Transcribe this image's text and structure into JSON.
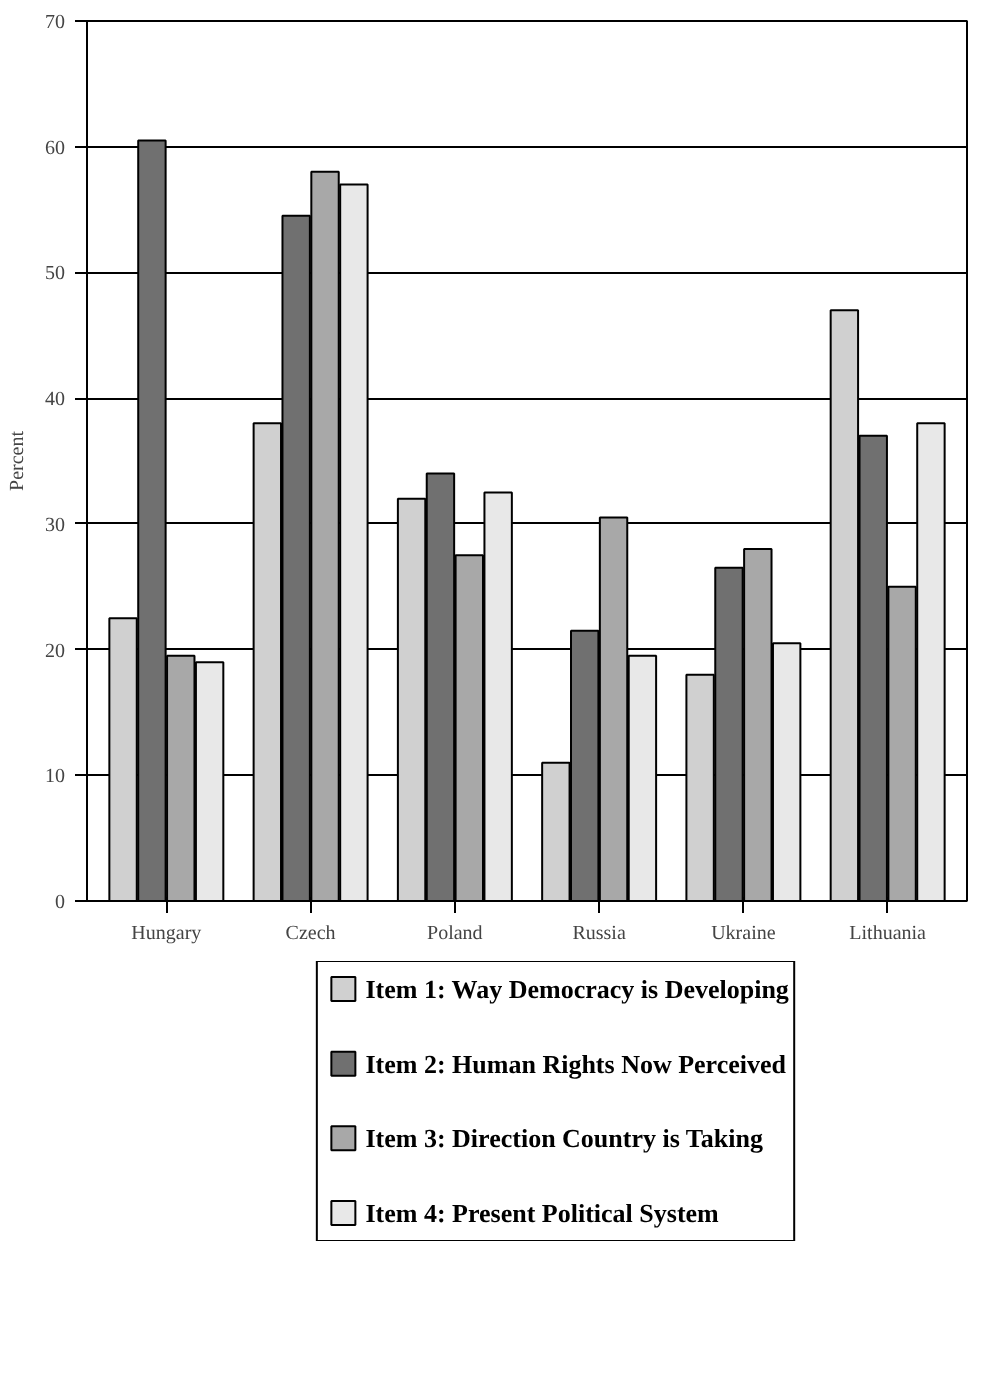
{
  "chart_data": {
    "type": "bar",
    "ylabel": "Percent",
    "categories": [
      "Hungary",
      "Czech",
      "Poland",
      "Russia",
      "Ukraine",
      "Lithuania"
    ],
    "series": [
      {
        "name": "Item 1: Way Democracy is Developing",
        "color": "#d0d0d0",
        "values": [
          22.5,
          38,
          32,
          11,
          18,
          47
        ]
      },
      {
        "name": "Item 2: Human Rights Now Perceived",
        "color": "#707070",
        "values": [
          60.5,
          54.5,
          34,
          21.5,
          26.5,
          37
        ]
      },
      {
        "name": "Item 3: Direction Country is Taking",
        "color": "#a8a8a8",
        "values": [
          19.5,
          58,
          27.5,
          30.5,
          28,
          25
        ]
      },
      {
        "name": "Item 4: Present Political System",
        "color": "#e8e8e8",
        "values": [
          19,
          57,
          32.5,
          19.5,
          20.5,
          38
        ]
      }
    ],
    "ylim": [
      0,
      70
    ],
    "yticks": [
      0,
      10,
      20,
      30,
      40,
      50,
      60,
      70
    ],
    "grid": "y",
    "legend": "bottom"
  }
}
